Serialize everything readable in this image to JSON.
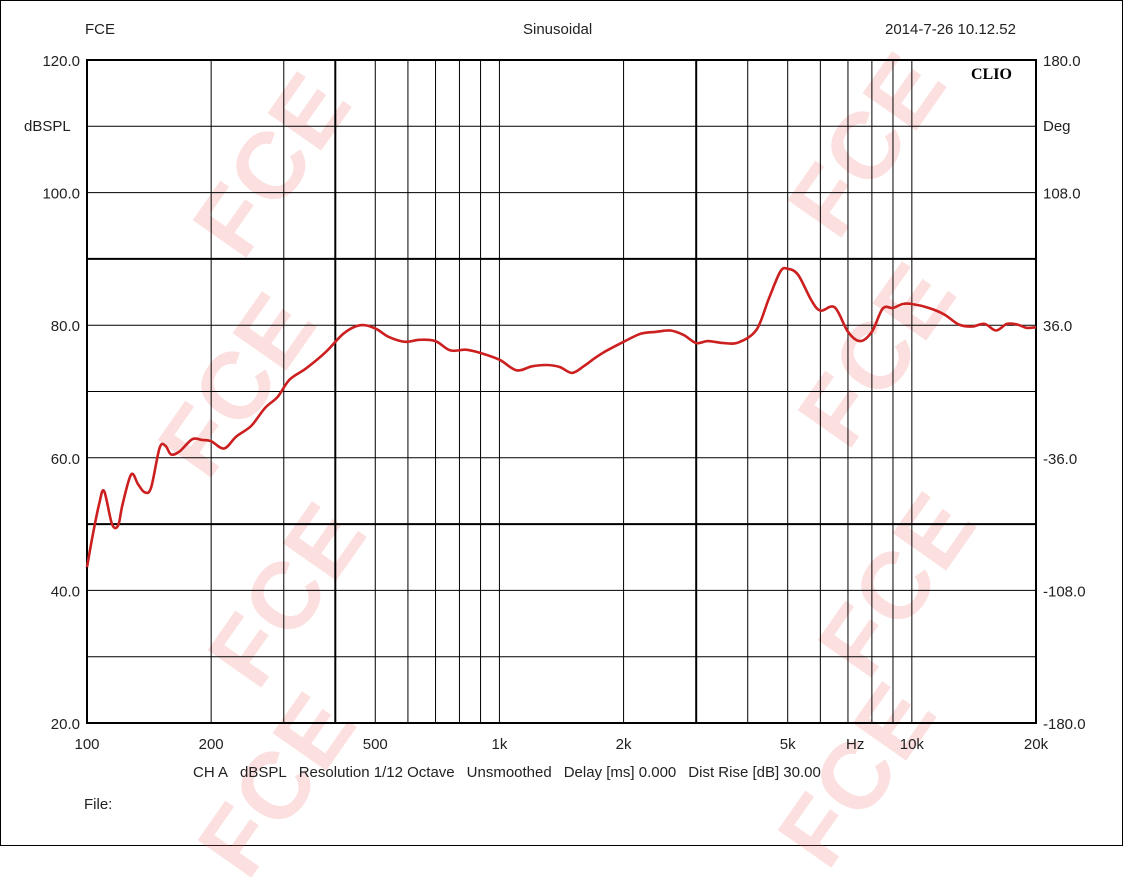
{
  "header": {
    "left": "FCE",
    "center": "Sinusoidal",
    "right": "2014-7-26 10.12.52"
  },
  "brand": "CLIO",
  "watermark": "FCE",
  "colors": {
    "curve": "#cc1f1f",
    "grid": "#000000",
    "watermark": "#f08080"
  },
  "info": {
    "channel": "CH A",
    "unit": "dBSPL",
    "resolution": "Resolution 1/12 Octave",
    "smoothing": "Unsmoothed",
    "delay": "Delay [ms] 0.000",
    "dist_rise": "Dist Rise [dB] 30.00"
  },
  "file_label": "File:",
  "chart_data": {
    "type": "line",
    "title": "",
    "xlabel": "Hz",
    "ylabel": "dBSPL",
    "y2label": "Deg",
    "xscale": "log",
    "xlim": [
      100,
      20000
    ],
    "ylim": [
      20,
      120
    ],
    "y2lim": [
      -180,
      180
    ],
    "grid": true,
    "x_tick_labels": [
      {
        "value": 100,
        "label": "100"
      },
      {
        "value": 200,
        "label": "200"
      },
      {
        "value": 500,
        "label": "500"
      },
      {
        "value": 1000,
        "label": "1k"
      },
      {
        "value": 2000,
        "label": "2k"
      },
      {
        "value": 5000,
        "label": "5k"
      },
      {
        "value": 10000,
        "label": "10k"
      },
      {
        "value": 20000,
        "label": "20k"
      }
    ],
    "y_tick_labels": [
      "20.0",
      "40.0",
      "60.0",
      "80.0",
      "100.0",
      "120.0"
    ],
    "y_tick_values": [
      20,
      40,
      60,
      80,
      100,
      120
    ],
    "y2_tick_labels": [
      "-180.0",
      "-108.0",
      "-36.0",
      "36.0",
      "108.0",
      "180.0"
    ],
    "y2_tick_values": [
      -180,
      -108,
      -36,
      36,
      108,
      180
    ],
    "series": [
      {
        "x": [
          100,
          103,
          107,
          110,
          115,
          119,
          122,
          128,
          133,
          138,
          143,
          150,
          155,
          160,
          168,
          180,
          190,
          200,
          215,
          230,
          250,
          270,
          290,
          310,
          340,
          380,
          420,
          460,
          500,
          540,
          590,
          640,
          700,
          760,
          830,
          900,
          1000,
          1100,
          1200,
          1300,
          1400,
          1500,
          1600,
          1700,
          1800,
          2000,
          2200,
          2400,
          2600,
          2800,
          3000,
          3200,
          3500,
          3800,
          4200,
          4500,
          4800,
          5000,
          5300,
          5700,
          6000,
          6500,
          7000,
          7500,
          8000,
          8500,
          9000,
          9500,
          10000,
          11000,
          12000,
          13000,
          14000,
          15000,
          16000,
          17000,
          18000,
          19000,
          20000
        ],
        "y": [
          43.5,
          48,
          53,
          55,
          50,
          49.8,
          53,
          57.5,
          56,
          54.8,
          55.5,
          61.5,
          61.8,
          60.5,
          61,
          62.8,
          62.7,
          62.5,
          61.4,
          63.2,
          64.8,
          67.5,
          69.2,
          71.8,
          73.5,
          76,
          78.8,
          80,
          79.5,
          78.2,
          77.5,
          77.8,
          77.6,
          76.2,
          76.3,
          75.8,
          74.8,
          73.2,
          73.8,
          74,
          73.7,
          72.8,
          73.8,
          75,
          76,
          77.5,
          78.7,
          79,
          79.2,
          78.5,
          77.3,
          77.6,
          77.3,
          77.4,
          79.3,
          84,
          88.1,
          88.5,
          87.6,
          83.8,
          82.2,
          82.7,
          79,
          77.6,
          79,
          82.5,
          82.6,
          83.2,
          83.2,
          82.6,
          81.6,
          80.1,
          79.8,
          80.2,
          79.2,
          80.2,
          80.1,
          79.6,
          79.7
        ]
      }
    ]
  }
}
